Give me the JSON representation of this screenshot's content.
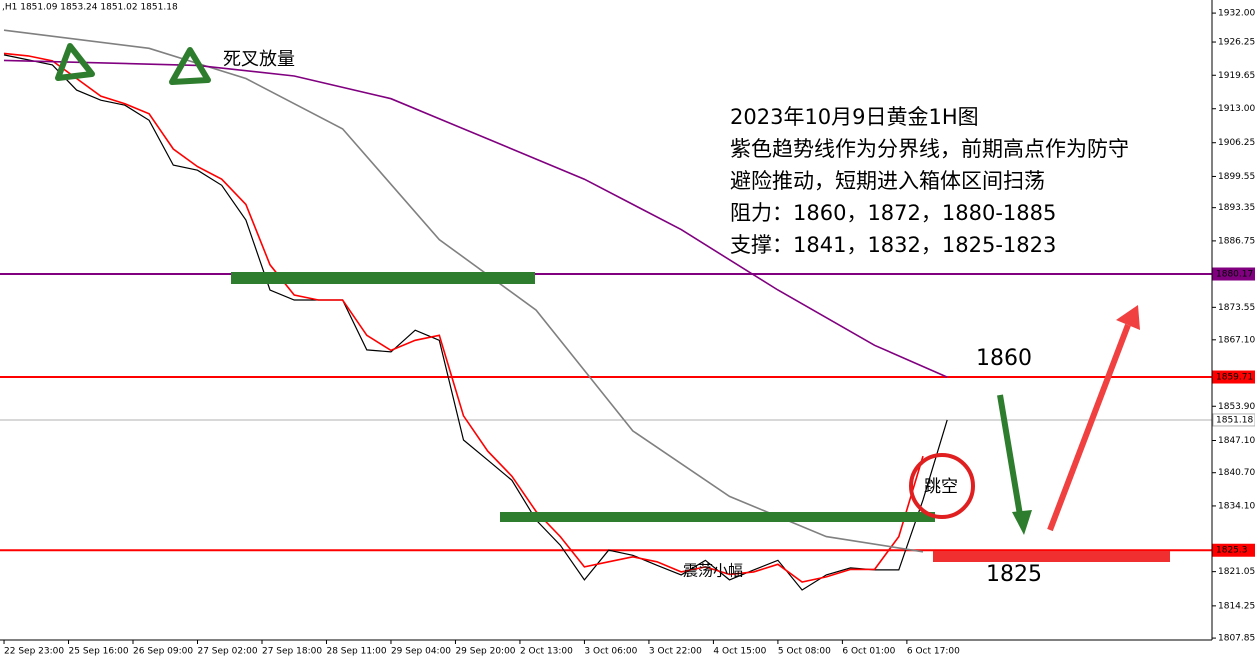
{
  "chart_data": {
    "type": "line",
    "header": ",H1  1851.09 1853.24 1851.02 1851.18",
    "annotations": [
      "2023年10月9日黄金1H图",
      "紫色趋势线作为分界线，前期高点作为防守",
      "避险推动，短期进入箱体区间扫荡",
      "阻力：1860，1872，1880-1885",
      "支撑：1841，1832，1825-1823"
    ],
    "marks": {
      "cross": "死叉放量",
      "level_high": "1860",
      "level_low": "1825",
      "gap": "跳空",
      "range": "震荡小幅"
    },
    "xlim": [
      -1,
      299.7
    ],
    "ylim": [
      1803.1,
      1934.6
    ],
    "xticks": [
      {
        "value": 0,
        "label": "22 Sep 23:00"
      },
      {
        "value": 16,
        "label": "25 Sep 16:00"
      },
      {
        "value": 32,
        "label": "26 Sep 09:00"
      },
      {
        "value": 48,
        "label": "27 Sep 02:00"
      },
      {
        "value": 64,
        "label": "27 Sep 18:00"
      },
      {
        "value": 80,
        "label": "28 Sep 11:00"
      },
      {
        "value": 96,
        "label": "29 Sep 04:00"
      },
      {
        "value": 112,
        "label": "29 Sep 20:00"
      },
      {
        "value": 128,
        "label": "2 Oct 13:00"
      },
      {
        "value": 144,
        "label": "3 Oct 06:00"
      },
      {
        "value": 160,
        "label": "3 Oct 22:00"
      },
      {
        "value": 176,
        "label": "4 Oct 15:00"
      },
      {
        "value": 192,
        "label": "5 Oct 08:00"
      },
      {
        "value": 208,
        "label": "6 Oct 01:00"
      },
      {
        "value": 224,
        "label": "6 Oct 17:00"
      }
    ],
    "yticks": [
      {
        "value": 1932,
        "label": "1932.00"
      },
      1926.25,
      1919.65,
      {
        "value": 1913,
        "label": "1913.00"
      },
      1906.25,
      1899.55,
      1893.35,
      1886.75,
      1873.55,
      {
        "value": 1867.1,
        "label": "1867.10"
      },
      {
        "value": 1853.9,
        "label": "1853.90"
      },
      {
        "value": 1847.1,
        "label": "1847.10"
      },
      {
        "value": 1840.7,
        "label": "1840.70"
      },
      {
        "value": 1834.1,
        "label": "1834.10"
      },
      1821.05,
      1814.25,
      1807.85
    ],
    "levels": [
      {
        "value": 1880.17,
        "color": "#800080"
      },
      {
        "value": 1859.71,
        "color": "#ff0000"
      },
      {
        "value": 1851.18,
        "color": "#b0b0b0"
      },
      {
        "value": 1825.3,
        "color": "#ff0000"
      }
    ],
    "series": [
      {
        "color": "#000000",
        "x": [
          0,
          6,
          12,
          18,
          24,
          30,
          36,
          42,
          48,
          54,
          60,
          66,
          72,
          78,
          84,
          90,
          96,
          102,
          108,
          114,
          120,
          126,
          132,
          138,
          144,
          150,
          156,
          162,
          168,
          174,
          180,
          186,
          192,
          198,
          204,
          210,
          216,
          222,
          228,
          234
        ],
        "values": [
          1923.7,
          1922.7,
          1921.7,
          1916.7,
          1914.7,
          1913.7,
          1910.7,
          1901.8,
          1900.8,
          1897.8,
          1890.9,
          1877,
          1875,
          1875,
          1875,
          1865.1,
          1864.7,
          1869,
          1867,
          1847.2,
          1843.2,
          1839.2,
          1831.3,
          1826.3,
          1819.4,
          1825.3,
          1824.3,
          1822.3,
          1820.4,
          1823.3,
          1819.4,
          1821.4,
          1823.3,
          1817.4,
          1820.4,
          1821.8,
          1821.4,
          1821.4,
          1835.3,
          1851.2
        ]
      },
      {
        "color": "#ff0000",
        "x": [
          0,
          6,
          12,
          18,
          24,
          30,
          36,
          42,
          48,
          54,
          60,
          66,
          72,
          78,
          84,
          90,
          96,
          102,
          108,
          114,
          120,
          126,
          132,
          138,
          144,
          150,
          156,
          162,
          168,
          174,
          180,
          186,
          192,
          198,
          204,
          210,
          216,
          222,
          228
        ],
        "values": [
          1924,
          1923.5,
          1922.5,
          1919,
          1915.5,
          1914,
          1912,
          1905,
          1901.5,
          1899,
          1894,
          1882,
          1876,
          1875,
          1875,
          1868,
          1865,
          1867,
          1868,
          1852,
          1845,
          1840,
          1833,
          1828,
          1822,
          1823,
          1824,
          1823,
          1821,
          1822,
          1820.5,
          1821,
          1822.5,
          1819,
          1820,
          1821.5,
          1821.5,
          1828,
          1844
        ]
      },
      {
        "color": "#808080",
        "x": [
          0,
          36,
          60,
          84,
          108,
          132,
          156,
          180,
          204,
          228
        ],
        "values": [
          1928.6,
          1925,
          1919,
          1909,
          1887,
          1873,
          1849,
          1836,
          1828,
          1825
        ]
      },
      {
        "color": "#800080",
        "x": [
          0,
          48,
          72,
          96,
          120,
          144,
          168,
          192,
          216,
          234
        ],
        "values": [
          1922.6,
          1921.6,
          1919.5,
          1915,
          1907,
          1899,
          1889,
          1877,
          1866,
          1859.7
        ]
      }
    ]
  }
}
